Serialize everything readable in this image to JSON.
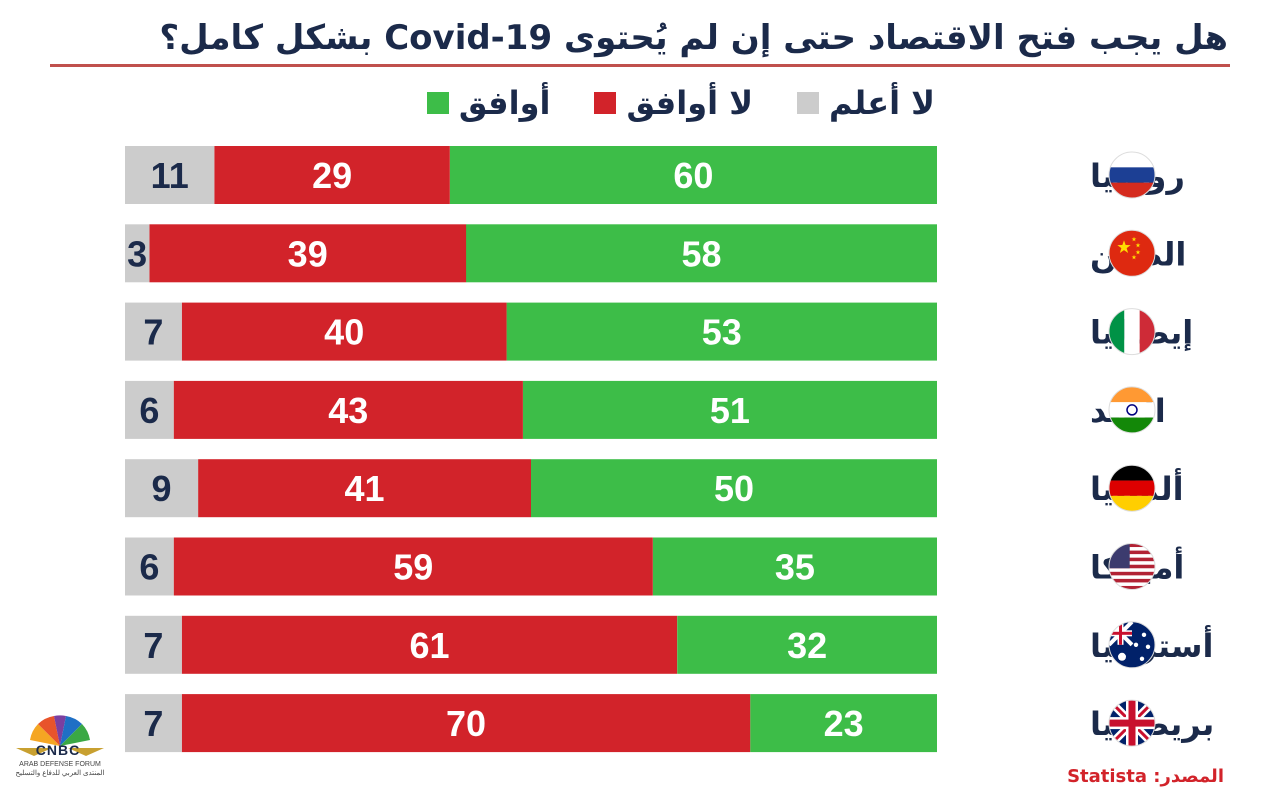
{
  "title": "هل يجب فتح الاقتصاد حتى إن لم يُحتوى Covid-19 بشكل كامل؟",
  "source": "المصدر: Statista",
  "logo": {
    "text": "CNBC",
    "subtext": "ARAB DEFENSE FORUM",
    "subtext_ar": "المنتدى العربي للدفاع والتسليح"
  },
  "colors": {
    "agree": "#3dbd48",
    "disagree": "#d2232a",
    "dont_know": "#cccccc",
    "title": "#1b2a4a",
    "rule": "#c0504d"
  },
  "chart_data": {
    "type": "bar",
    "stacked": true,
    "orientation": "horizontal",
    "title": "هل يجب فتح الاقتصاد حتى إن لم يُحتوى Covid-19 بشكل كامل؟",
    "categories": [
      "روسيا",
      "الصين",
      "إيطاليا",
      "الهند",
      "ألمانيا",
      "أميركا",
      "أستراليا",
      "بريطانيا"
    ],
    "flags": [
      "russia-flag-icon",
      "china-flag-icon",
      "italy-flag-icon",
      "india-flag-icon",
      "germany-flag-icon",
      "usa-flag-icon",
      "australia-flag-icon",
      "uk-flag-icon"
    ],
    "series": [
      {
        "name": "أوافق",
        "color": "#3dbd48",
        "label_color": "#ffffff",
        "values": [
          60,
          58,
          53,
          51,
          50,
          35,
          32,
          23
        ]
      },
      {
        "name": "لا أوافق",
        "color": "#d2232a",
        "label_color": "#ffffff",
        "values": [
          29,
          39,
          40,
          43,
          41,
          59,
          61,
          70
        ]
      },
      {
        "name": "لا أعلم",
        "color": "#cccccc",
        "label_color": "#1b2a4a",
        "values": [
          11,
          3,
          7,
          6,
          9,
          6,
          7,
          7
        ]
      }
    ],
    "xlim": [
      0,
      100
    ],
    "legend": "top",
    "grid": false
  }
}
